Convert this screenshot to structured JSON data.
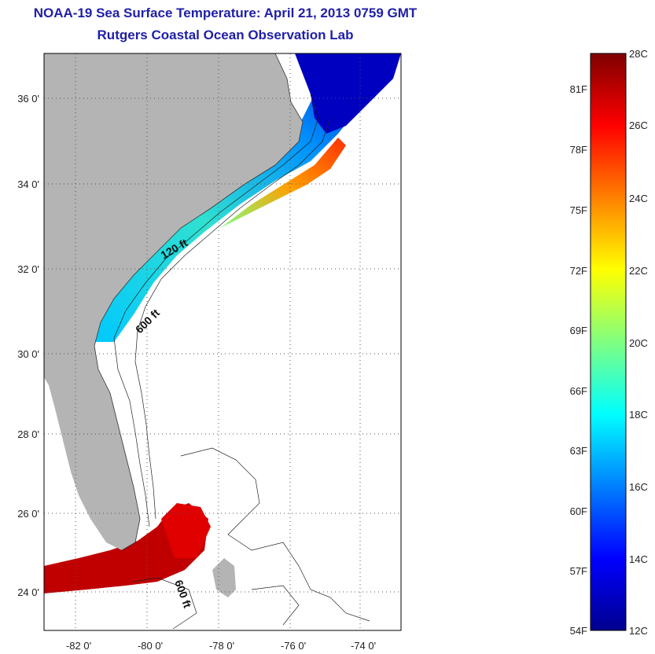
{
  "title": "NOAA-19 Sea Surface Temperature:  April 21, 2013 0759 GMT",
  "subtitle": "Rutgers Coastal Ocean Observation Lab",
  "map": {
    "lat_labels": [
      "36 0'",
      "34 0'",
      "32 0'",
      "30 0'",
      "28 0'",
      "26 0'",
      "24 0'"
    ],
    "lon_labels": [
      "-82 0'",
      "-80 0'",
      "-78 0'",
      "-76 0'",
      "-74 0'"
    ],
    "contour_labels": [
      "120 ft",
      "600 ft",
      "600 ft"
    ],
    "land_color": "#b4b4b4"
  },
  "colorbar": {
    "celsius": [
      "28C",
      "26C",
      "24C",
      "22C",
      "20C",
      "18C",
      "16C",
      "14C",
      "12C"
    ],
    "fahrenheit": [
      "81F",
      "78F",
      "75F",
      "72F",
      "69F",
      "66F",
      "63F",
      "60F",
      "57F",
      "54F"
    ],
    "colors": [
      "#7f0000",
      "#ff0000",
      "#ff8000",
      "#ffff00",
      "#80ff80",
      "#00ffff",
      "#0080ff",
      "#0000ff",
      "#00008f"
    ]
  }
}
